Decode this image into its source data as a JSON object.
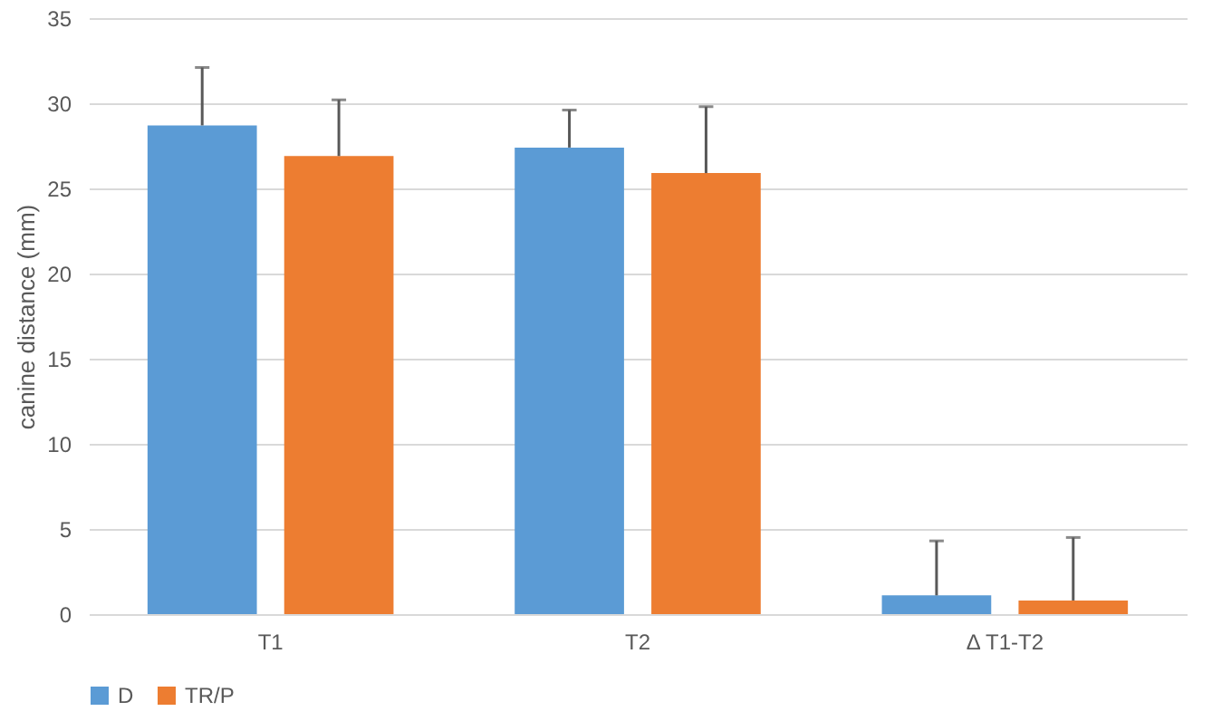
{
  "chart_data": {
    "type": "bar",
    "ylabel": "canine distance (mm)",
    "categories": [
      "T1",
      "T2",
      "Δ T1-T2"
    ],
    "series": [
      {
        "name": "D",
        "color": "#5b9bd5",
        "values": [
          28.7,
          27.4,
          1.1
        ],
        "errors": [
          [
            28.7,
            32.1
          ],
          [
            27.4,
            29.6
          ],
          [
            1.1,
            4.3
          ]
        ]
      },
      {
        "name": "TR/P",
        "color": "#ed7d31",
        "values": [
          26.9,
          25.9,
          0.8
        ],
        "errors": [
          [
            26.9,
            30.2
          ],
          [
            25.9,
            29.8
          ],
          [
            0.8,
            4.5
          ]
        ]
      }
    ],
    "ylim": [
      0,
      35
    ],
    "yticks": [
      0,
      5,
      10,
      15,
      20,
      25,
      30,
      35
    ],
    "grid": "y",
    "legend": "bottom"
  }
}
